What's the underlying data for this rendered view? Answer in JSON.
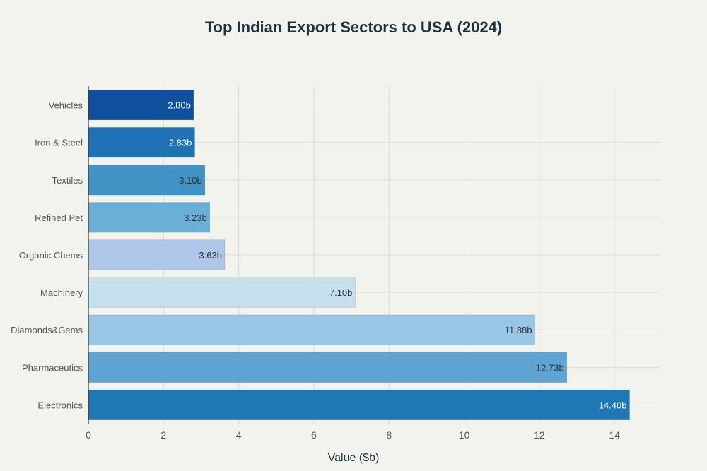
{
  "chart_data": {
    "type": "bar",
    "orientation": "horizontal",
    "title": "Top Indian Export Sectors to USA (2024)",
    "xlabel": "Value ($b)",
    "ylabel": "",
    "xlim": [
      0,
      15.2
    ],
    "xticks": [
      0,
      2,
      4,
      6,
      8,
      10,
      12,
      14
    ],
    "grid": true,
    "categories": [
      "Vehicles",
      "Iron & Steel",
      "Textiles",
      "Refined Pet",
      "Organic Chems",
      "Machinery",
      "Diamonds&Gems",
      "Pharmaceutics",
      "Electronics"
    ],
    "values": [
      2.8,
      2.83,
      3.1,
      3.23,
      3.63,
      7.1,
      11.88,
      12.73,
      14.4
    ],
    "data_labels": [
      "2.80b",
      "2.83b",
      "3.10b",
      "3.23b",
      "3.63b",
      "7.10b",
      "11.88b",
      "12.73b",
      "14.40b"
    ],
    "colors": [
      "#0f4f9c",
      "#2171b5",
      "#4292c6",
      "#6baed6",
      "#aec7e8",
      "#c6dfef",
      "#98c7e6",
      "#5ea3d1",
      "#1f77b4"
    ],
    "label_colors": [
      "#ffffff",
      "#ffffff",
      "#333333",
      "#333333",
      "#333333",
      "#333333",
      "#333333",
      "#333333",
      "#ffffff"
    ]
  }
}
